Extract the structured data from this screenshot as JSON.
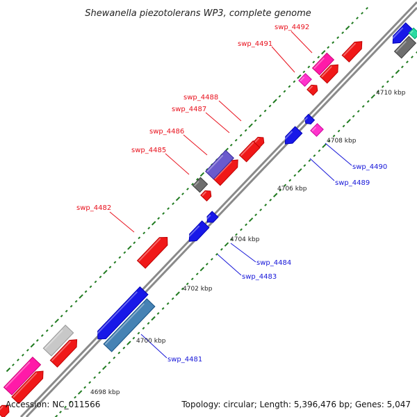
{
  "title": "Shewanella piezotolerans WP3, complete genome",
  "footer": {
    "accession": "Accession: NC_011566",
    "summary": "Topology: circular; Length: 5,396,476 bp; Genes: 5,047"
  },
  "colors": {
    "backbone": "#8a8a8a",
    "fwd_label": "#e8101c",
    "rev_label": "#1515d8",
    "red": "#f01818",
    "blue": "#1818e8",
    "magenta": "#ff1aa8",
    "pink": "#ff33cc",
    "purple": "#6a5acd",
    "grey": "#6e6e6e",
    "lightgrey": "#c8c8c8",
    "steel": "#4682b4",
    "teal": "#2ad9a0",
    "tick": "#1f7a1f"
  },
  "scale_labels": [
    "4698 kbp",
    "4700 kbp",
    "4702 kbp",
    "4704 kbp",
    "4706 kbp",
    "4708 kbp",
    "4710 kbp"
  ],
  "gene_labels": [
    {
      "name": "swp_4492",
      "strand": "fwd"
    },
    {
      "name": "swp_4491",
      "strand": "fwd"
    },
    {
      "name": "swp_4488",
      "strand": "fwd"
    },
    {
      "name": "swp_4487",
      "strand": "fwd"
    },
    {
      "name": "swp_4486",
      "strand": "fwd"
    },
    {
      "name": "swp_4485",
      "strand": "fwd"
    },
    {
      "name": "swp_4482",
      "strand": "fwd"
    },
    {
      "name": "swp_4490",
      "strand": "rev"
    },
    {
      "name": "swp_4489",
      "strand": "rev"
    },
    {
      "name": "swp_4484",
      "strand": "rev"
    },
    {
      "name": "swp_4483",
      "strand": "rev"
    },
    {
      "name": "swp_4481",
      "strand": "rev"
    }
  ]
}
